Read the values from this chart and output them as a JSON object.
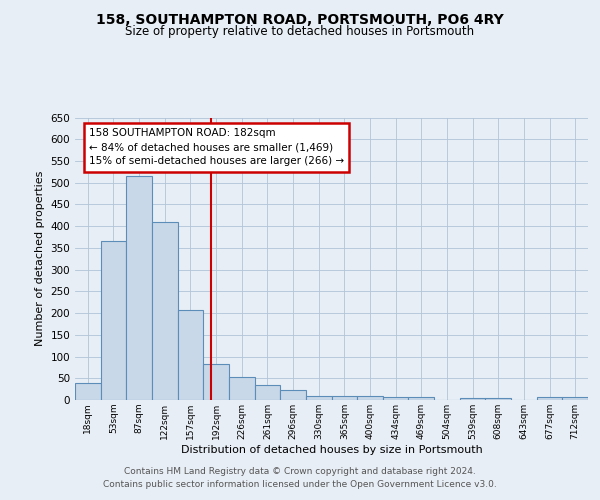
{
  "title1": "158, SOUTHAMPTON ROAD, PORTSMOUTH, PO6 4RY",
  "title2": "Size of property relative to detached houses in Portsmouth",
  "xlabel": "Distribution of detached houses by size in Portsmouth",
  "ylabel": "Number of detached properties",
  "bar_labels": [
    "18sqm",
    "53sqm",
    "87sqm",
    "122sqm",
    "157sqm",
    "192sqm",
    "226sqm",
    "261sqm",
    "296sqm",
    "330sqm",
    "365sqm",
    "400sqm",
    "434sqm",
    "469sqm",
    "504sqm",
    "539sqm",
    "608sqm",
    "643sqm",
    "677sqm",
    "712sqm"
  ],
  "bar_values": [
    38,
    365,
    515,
    410,
    207,
    83,
    53,
    35,
    22,
    10,
    9,
    9,
    8,
    8,
    0,
    5,
    5,
    0,
    6,
    6
  ],
  "bar_color": "#c8d8e8",
  "bar_edge_color": "#5b8db8",
  "property_line_x": 4.82,
  "property_line_color": "#cc0000",
  "annotation_text": "158 SOUTHAMPTON ROAD: 182sqm\n← 84% of detached houses are smaller (1,469)\n15% of semi-detached houses are larger (266) →",
  "annotation_box_color": "#ffffff",
  "annotation_box_edge": "#cc0000",
  "ylim": [
    0,
    650
  ],
  "yticks": [
    0,
    50,
    100,
    150,
    200,
    250,
    300,
    350,
    400,
    450,
    500,
    550,
    600,
    650
  ],
  "footer1": "Contains HM Land Registry data © Crown copyright and database right 2024.",
  "footer2": "Contains public sector information licensed under the Open Government Licence v3.0.",
  "bg_color": "#e8eef5",
  "plot_bg_color": "#e8eef5"
}
